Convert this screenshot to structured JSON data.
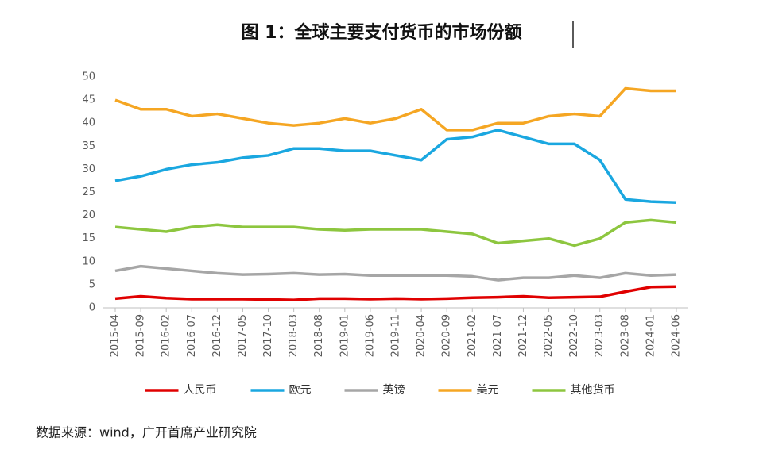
{
  "chart_data": {
    "type": "line",
    "title": "图 1：全球主要支付货币的市场份额",
    "source": "数据来源：wind，广开首席产业研究院",
    "categories": [
      "2015-04",
      "2015-09",
      "2016-02",
      "2016-07",
      "2016-12",
      "2017-05",
      "2017-10",
      "2018-03",
      "2018-08",
      "2019-01",
      "2019-06",
      "2019-11",
      "2020-04",
      "2020-09",
      "2021-02",
      "2021-07",
      "2021-12",
      "2022-05",
      "2022-10",
      "2023-03",
      "2023-08",
      "2024-01",
      "2024-06"
    ],
    "series": [
      {
        "name": "人民币",
        "color": "#e00000",
        "values": [
          2,
          2.5,
          2.1,
          1.9,
          1.9,
          1.9,
          1.8,
          1.7,
          2,
          2,
          1.9,
          2,
          1.9,
          2,
          2.2,
          2.3,
          2.5,
          2.2,
          2.3,
          2.4,
          3.5,
          4.5,
          4.6
        ]
      },
      {
        "name": "欧元",
        "color": "#1aa7e0",
        "values": [
          27.5,
          28.5,
          30,
          31,
          31.5,
          32.5,
          33,
          34.5,
          34.5,
          34,
          34,
          33,
          32,
          36.5,
          37,
          38.5,
          37,
          35.5,
          35.5,
          32,
          23.5,
          23,
          22.8
        ]
      },
      {
        "name": "英镑",
        "color": "#a6a6a6",
        "values": [
          8,
          9,
          8.5,
          8,
          7.5,
          7.2,
          7.3,
          7.5,
          7.2,
          7.3,
          7,
          7,
          7,
          7,
          6.8,
          6,
          6.5,
          6.5,
          7,
          6.5,
          7.5,
          7,
          7.2
        ]
      },
      {
        "name": "美元",
        "color": "#f5a623",
        "values": [
          45,
          43,
          43,
          41.5,
          42,
          41,
          40,
          39.5,
          40,
          41,
          40,
          41,
          43,
          38.5,
          38.5,
          40,
          40,
          41.5,
          42,
          41.5,
          47.5,
          47,
          47
        ]
      },
      {
        "name": "其他货币",
        "color": "#8dc63f",
        "values": [
          17.5,
          17,
          16.5,
          17.5,
          18,
          17.5,
          17.5,
          17.5,
          17,
          16.8,
          17,
          17,
          17,
          16.5,
          16,
          14,
          14.5,
          15,
          13.5,
          15,
          18.5,
          19,
          18.5
        ]
      }
    ],
    "ylim": [
      0,
      50
    ],
    "yticks": [
      0,
      5,
      10,
      15,
      20,
      25,
      30,
      35,
      40,
      45,
      50
    ],
    "grid": false,
    "legend": "bottom"
  }
}
